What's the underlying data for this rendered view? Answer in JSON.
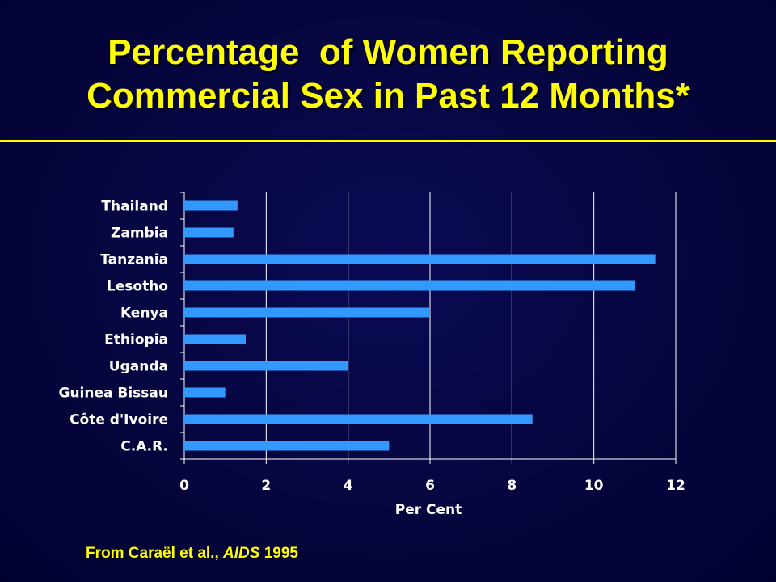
{
  "slide": {
    "title_line1": "Percentage  of Women Reporting",
    "title_line2": "Commercial Sex in Past 12 Months*",
    "source_prefix": "From Caraël et al., ",
    "source_journal": "AIDS",
    "source_year": " 1995"
  },
  "colors": {
    "background": "#06063f",
    "title": "#ffff00",
    "bar": "#3399ff",
    "axis_text": "#ffffff",
    "grid": "#ffffff"
  },
  "chart_data": {
    "type": "bar",
    "orientation": "horizontal",
    "categories": [
      "Thailand",
      "Zambia",
      "Tanzania",
      "Lesotho",
      "Kenya",
      "Ethiopia",
      "Uganda",
      "Guinea Bissau",
      "Côte d'Ivoire",
      "C.A.R."
    ],
    "values": [
      1.3,
      1.2,
      11.5,
      11.0,
      6.0,
      1.5,
      4.0,
      1.0,
      8.5,
      5.0
    ],
    "xlabel": "Per Cent",
    "ylabel": "",
    "xlim": [
      0,
      12
    ],
    "xticks": [
      "0",
      "2",
      "4",
      "6",
      "8",
      "10",
      "12"
    ],
    "grid": "vertical",
    "legend": "none"
  }
}
